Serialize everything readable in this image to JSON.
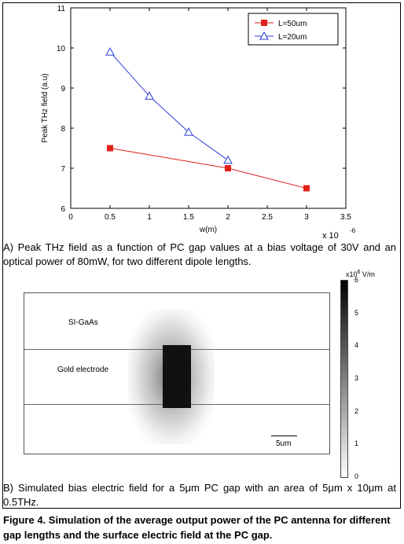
{
  "chart_data": {
    "type": "line",
    "xlabel": "w(m)",
    "ylabel": "Peak THz field (a.u)",
    "x_multiplier_label": "x 10",
    "x_multiplier_exp": "-6",
    "xlim": [
      0,
      3.5
    ],
    "ylim": [
      6,
      11
    ],
    "xticks": [
      "0",
      "0.5",
      "1",
      "1.5",
      "2",
      "2.5",
      "3",
      "3.5"
    ],
    "yticks": [
      "6",
      "7",
      "8",
      "9",
      "10",
      "11"
    ],
    "legend_position": "top-right",
    "series": [
      {
        "name": "L=50um",
        "color": "#e0201b",
        "marker": "square",
        "x": [
          0.5,
          2,
          3
        ],
        "y": [
          7.5,
          7.0,
          6.5
        ]
      },
      {
        "name": "L=20um",
        "color": "#2b3bd6",
        "marker": "triangle",
        "x": [
          0.5,
          1,
          1.5,
          2
        ],
        "y": [
          9.9,
          8.8,
          7.9,
          7.2
        ]
      }
    ]
  },
  "caption_a": "A) Peak THz field as a function of PC gap values at a bias voltage of 30V and an optical power of 80mW, for two different dipole lengths.",
  "simulation": {
    "label_substrate": "SI-GaAs",
    "label_electrode": "Gold electrode",
    "scale_label": "5um",
    "colorbar_unit": "x10",
    "colorbar_exp": "6",
    "colorbar_unit_suffix": " V/m",
    "colorbar_ticks": [
      "6",
      "5",
      "4",
      "3",
      "2",
      "1",
      "0"
    ]
  },
  "caption_b": "B) Simulated bias electric field for a 5μm PC gap with an area of 5μm x 10μm at 0.5THz.",
  "figure_caption": "Figure 4. Simulation of the average output power of the PC antenna for different gap lengths and the surface electric field at the PC gap."
}
